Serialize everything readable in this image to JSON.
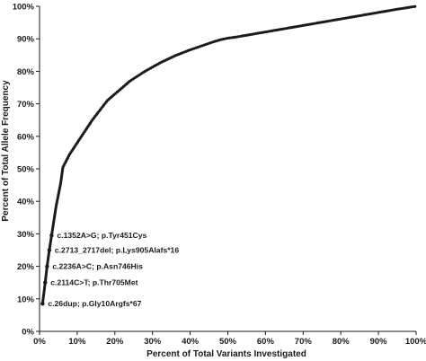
{
  "chart_data": {
    "type": "line",
    "title": "",
    "xlabel": "Percent of Total Variants Investigated",
    "ylabel": "Percent of Total  Allele Frequency",
    "xlim": [
      0,
      100
    ],
    "ylim": [
      0,
      100
    ],
    "x_ticks": [
      "0%",
      "10%",
      "20%",
      "30%",
      "40%",
      "50%",
      "60%",
      "70%",
      "80%",
      "90%",
      "100%"
    ],
    "y_ticks": [
      "0%",
      "10%",
      "20%",
      "30%",
      "40%",
      "50%",
      "60%",
      "70%",
      "80%",
      "90%",
      "100%"
    ],
    "grid": false,
    "legend": "none",
    "series_color": "#1a1a1a",
    "series": [
      {
        "x": [
          0.8,
          1.5,
          2.0,
          2.6,
          3.2,
          3.8,
          4.4,
          5.0,
          5.6,
          6.2,
          8,
          10,
          12,
          14,
          16,
          18,
          20,
          22,
          24,
          26,
          28,
          30,
          32,
          34,
          36,
          38,
          40,
          42,
          44,
          46,
          48,
          50,
          52,
          55,
          60,
          65,
          70,
          75,
          80,
          85,
          90,
          95,
          100
        ],
        "y": [
          8.5,
          15,
          20,
          25,
          29.5,
          34,
          38.5,
          42,
          45.5,
          50.5,
          54.5,
          58,
          61.5,
          65,
          68,
          71,
          73,
          75,
          77,
          78.5,
          80,
          81.3,
          82.6,
          83.7,
          84.8,
          85.7,
          86.6,
          87.4,
          88.2,
          89,
          89.7,
          90.2,
          90.5,
          91.1,
          92.1,
          93.1,
          94.1,
          95.1,
          96.1,
          97.1,
          98.1,
          99.1,
          100
        ]
      }
    ],
    "annotations": [
      {
        "text": "c.1352A>G; p.Tyr451Cys",
        "x": 3.2,
        "y": 29.5
      },
      {
        "text": "c.2713_2717del; p.Lys905Alafs*16",
        "x": 2.6,
        "y": 25
      },
      {
        "text": "c.2236A>C; p.Asn746His",
        "x": 2.0,
        "y": 20
      },
      {
        "text": "c.2114C>T; p.Thr705Met",
        "x": 1.5,
        "y": 15
      },
      {
        "text": "c.26dup; p.Gly10Argfs*67",
        "x": 0.8,
        "y": 8.5
      }
    ]
  }
}
